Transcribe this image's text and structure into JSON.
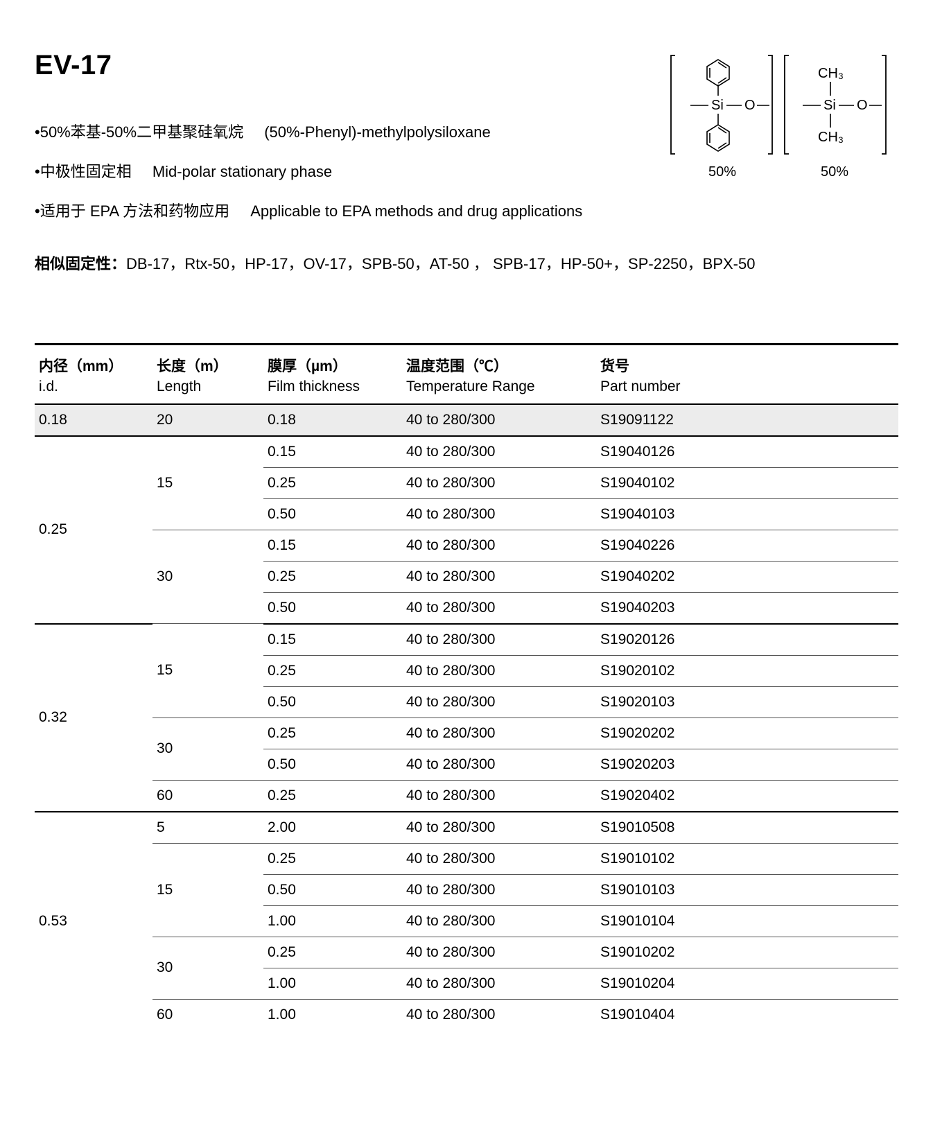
{
  "title": "EV-17",
  "bullets": [
    {
      "cn": "•50%苯基-50%二甲基聚硅氧烷",
      "en": "(50%-Phenyl)-methylpolysiloxane"
    },
    {
      "cn": "•中极性固定相",
      "en": "Mid-polar stationary phase"
    },
    {
      "cn": "•适用于 EPA 方法和药物应用",
      "en": "Applicable to EPA methods and drug applications"
    }
  ],
  "similar": {
    "label": "相似固定性：",
    "list": "DB-17，Rtx-50，HP-17，OV-17，SPB-50，AT-50 ， SPB-17，HP-50+，SP-2250，BPX-50"
  },
  "structure": {
    "left_label": "50%",
    "right_label": "50%",
    "left_top_group": "",
    "right_ch3_top": "CH₃",
    "right_ch3_bot": "CH₃",
    "si_o": "Si",
    "o": "O"
  },
  "table": {
    "headers": [
      {
        "cn": "内径（mm）",
        "en": "i.d."
      },
      {
        "cn": "长度（m）",
        "en": "Length"
      },
      {
        "cn": "膜厚（µm）",
        "en": "Film thickness"
      },
      {
        "cn": "温度范围（℃）",
        "en": "Temperature Range"
      },
      {
        "cn": "货号",
        "en": "Part number"
      }
    ],
    "groups": [
      {
        "id": "0.18",
        "lengths": [
          {
            "len": "20",
            "rows": [
              {
                "film": "0.18",
                "temp": "40 to 280/300",
                "part": "S19091122",
                "shade": true
              }
            ]
          }
        ]
      },
      {
        "id": "0.25",
        "lengths": [
          {
            "len": "15",
            "rows": [
              {
                "film": "0.15",
                "temp": "40 to 280/300",
                "part": "S19040126"
              },
              {
                "film": "0.25",
                "temp": "40 to 280/300",
                "part": "S19040102"
              },
              {
                "film": "0.50",
                "temp": "40 to 280/300",
                "part": "S19040103"
              }
            ]
          },
          {
            "len": "30",
            "rows": [
              {
                "film": "0.15",
                "temp": "40 to 280/300",
                "part": "S19040226"
              },
              {
                "film": "0.25",
                "temp": "40 to 280/300",
                "part": "S19040202"
              },
              {
                "film": "0.50",
                "temp": "40 to 280/300",
                "part": "S19040203"
              }
            ]
          }
        ]
      },
      {
        "id": "0.32",
        "lengths": [
          {
            "len": "15",
            "rows": [
              {
                "film": "0.15",
                "temp": "40 to 280/300",
                "part": "S19020126"
              },
              {
                "film": "0.25",
                "temp": "40 to 280/300",
                "part": "S19020102"
              },
              {
                "film": "0.50",
                "temp": "40 to 280/300",
                "part": "S19020103"
              }
            ]
          },
          {
            "len": "30",
            "rows": [
              {
                "film": "0.25",
                "temp": "40 to 280/300",
                "part": "S19020202"
              },
              {
                "film": "0.50",
                "temp": "40 to 280/300",
                "part": "S19020203"
              }
            ]
          },
          {
            "len": "60",
            "rows": [
              {
                "film": "0.25",
                "temp": "40 to 280/300",
                "part": "S19020402"
              }
            ]
          }
        ]
      },
      {
        "id": "0.53",
        "lengths": [
          {
            "len": "5",
            "rows": [
              {
                "film": "2.00",
                "temp": "40 to 280/300",
                "part": "S19010508"
              }
            ]
          },
          {
            "len": "15",
            "rows": [
              {
                "film": "0.25",
                "temp": "40 to 280/300",
                "part": "S19010102"
              },
              {
                "film": "0.50",
                "temp": "40 to 280/300",
                "part": "S19010103"
              },
              {
                "film": "1.00",
                "temp": "40 to 280/300",
                "part": "S19010104"
              }
            ]
          },
          {
            "len": "30",
            "rows": [
              {
                "film": "0.25",
                "temp": "40 to 280/300",
                "part": "S19010202"
              },
              {
                "film": "1.00",
                "temp": "40 to 280/300",
                "part": "S19010204"
              }
            ]
          },
          {
            "len": "60",
            "rows": [
              {
                "film": "1.00",
                "temp": "40 to 280/300",
                "part": "S19010404"
              }
            ]
          }
        ]
      }
    ]
  },
  "colors": {
    "text": "#000000",
    "bg": "#ffffff",
    "shade": "#ececec",
    "rule_heavy": "#000000",
    "rule_light": "#555555"
  }
}
